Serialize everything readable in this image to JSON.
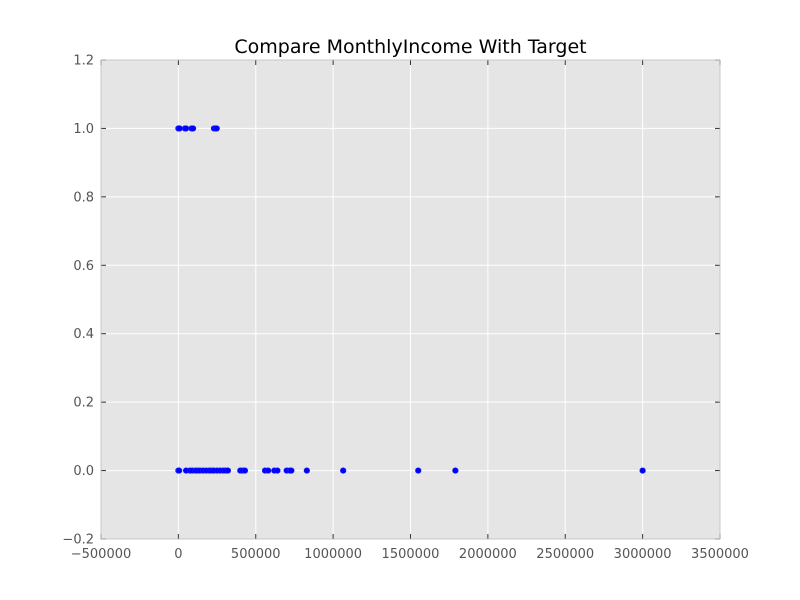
{
  "chart_data": {
    "type": "scatter",
    "title": "Compare MonthlyIncome With Target",
    "xlabel": "",
    "ylabel": "",
    "xlim": [
      -500000,
      3500000
    ],
    "ylim": [
      -0.2,
      1.2
    ],
    "xticks": [
      -500000,
      0,
      500000,
      1000000,
      1500000,
      2000000,
      2500000,
      3000000,
      3500000
    ],
    "xtick_labels": [
      "−500000",
      "0",
      "500000",
      "1000000",
      "1500000",
      "2000000",
      "2500000",
      "3000000",
      "3500000"
    ],
    "yticks": [
      -0.2,
      0.0,
      0.2,
      0.4,
      0.6,
      0.8,
      1.0,
      1.2
    ],
    "ytick_labels": [
      "−0.2",
      "0.0",
      "0.2",
      "0.4",
      "0.6",
      "0.8",
      "1.0",
      "1.2"
    ],
    "grid": true,
    "colors": {
      "background": "#e5e5e5",
      "grid": "#ffffff",
      "marker": "#0000ff",
      "marker_edge": "#1a1aff"
    },
    "series": [
      {
        "name": "",
        "x": [
          0,
          2000,
          8000,
          42000,
          50000,
          85000,
          95000,
          230000,
          240000,
          248000,
          0,
          5000,
          50000,
          75000,
          90000,
          110000,
          125000,
          140000,
          160000,
          180000,
          200000,
          215000,
          230000,
          250000,
          270000,
          290000,
          305000,
          320000,
          400000,
          415000,
          430000,
          560000,
          580000,
          620000,
          640000,
          700000,
          720000,
          730000,
          830000,
          1065000,
          1550000,
          1790000,
          3000000
        ],
        "y": [
          1,
          1,
          1,
          1,
          1,
          1,
          1,
          1,
          1,
          1,
          0,
          0,
          0,
          0,
          0,
          0,
          0,
          0,
          0,
          0,
          0,
          0,
          0,
          0,
          0,
          0,
          0,
          0,
          0,
          0,
          0,
          0,
          0,
          0,
          0,
          0,
          0,
          0,
          0,
          0,
          0,
          0,
          0
        ]
      }
    ]
  }
}
